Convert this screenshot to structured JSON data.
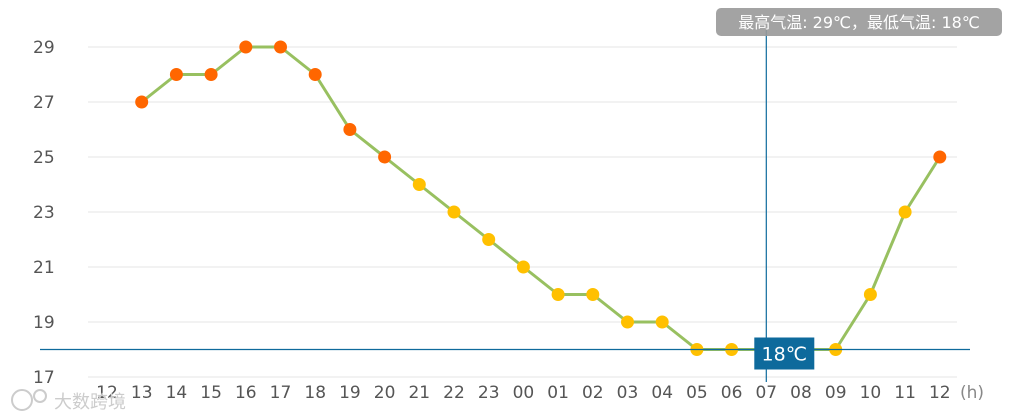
{
  "chart_data": {
    "type": "line",
    "categories": [
      "12",
      "13",
      "14",
      "15",
      "16",
      "17",
      "18",
      "19",
      "20",
      "21",
      "22",
      "23",
      "00",
      "01",
      "02",
      "03",
      "04",
      "05",
      "06",
      "07",
      "08",
      "09",
      "10",
      "11",
      "12"
    ],
    "series": [
      {
        "values": [
          null,
          27,
          28,
          28,
          29,
          29,
          28,
          26,
          25,
          24,
          23,
          22,
          21,
          20,
          20,
          19,
          19,
          18,
          18,
          18,
          18,
          18,
          20,
          23,
          25
        ]
      }
    ],
    "y_ticks": [
      "17",
      "19",
      "21",
      "23",
      "25",
      "27",
      "29"
    ],
    "ylim": [
      17,
      29.5
    ],
    "x_unit": "(h)",
    "grid": "horizontal",
    "colors": {
      "line": "#98c060",
      "point_high": "#ff6600",
      "point_low": "#ffc000",
      "crosshair": "#0e6a9c"
    },
    "tooltip": "最高气温: 29℃，最低气温: 18℃",
    "crosshair": {
      "x_category": "07",
      "y_value": 18,
      "label": "18℃"
    }
  },
  "watermark": "大数跨境"
}
